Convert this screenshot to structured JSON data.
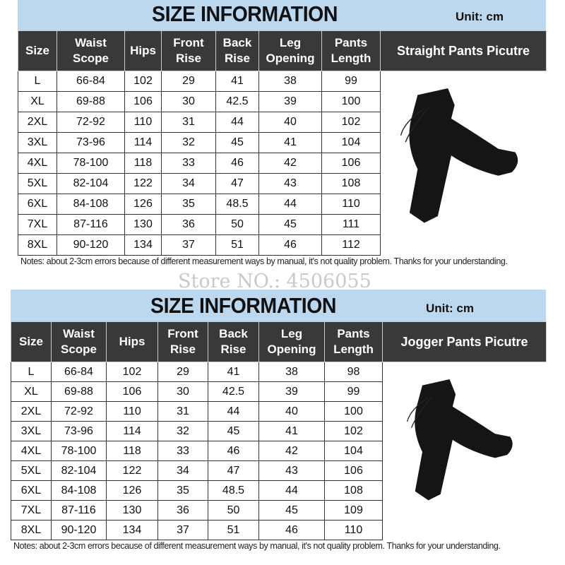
{
  "watermark": "Store NO.: 4506055",
  "tables": [
    {
      "title": "SIZE INFORMATION",
      "unit": "Unit: cm",
      "headers": [
        "Size",
        "Waist Scope",
        "Hips",
        "Front Rise",
        "Back Rise",
        "Leg Opening",
        "Pants Length",
        "Straight Pants Picutre"
      ],
      "rows": [
        [
          "L",
          "66-84",
          "102",
          "29",
          "41",
          "38",
          "99"
        ],
        [
          "XL",
          "69-88",
          "106",
          "30",
          "42.5",
          "39",
          "100"
        ],
        [
          "2XL",
          "72-92",
          "110",
          "31",
          "44",
          "40",
          "102"
        ],
        [
          "3XL",
          "73-96",
          "114",
          "32",
          "45",
          "41",
          "104"
        ],
        [
          "4XL",
          "78-100",
          "118",
          "33",
          "46",
          "42",
          "106"
        ],
        [
          "5XL",
          "82-104",
          "122",
          "34",
          "47",
          "43",
          "108"
        ],
        [
          "6XL",
          "84-108",
          "126",
          "35",
          "48.5",
          "44",
          "110"
        ],
        [
          "7XL",
          "87-116",
          "130",
          "36",
          "50",
          "45",
          "111"
        ],
        [
          "8XL",
          "90-120",
          "134",
          "37",
          "51",
          "46",
          "112"
        ]
      ],
      "notes": "Notes: about 2-3cm errors because of different measurement ways by manual, it's not quality problem.  Thanks for your understanding.",
      "picture": "straight-pants-image"
    },
    {
      "title": "SIZE INFORMATION",
      "unit": "Unit: cm",
      "headers": [
        "Size",
        "Waist Scope",
        "Hips",
        "Front Rise",
        "Back Rise",
        "Leg Opening",
        "Pants Length",
        "Jogger Pants Picutre"
      ],
      "rows": [
        [
          "L",
          "66-84",
          "102",
          "29",
          "41",
          "38",
          "98"
        ],
        [
          "XL",
          "69-88",
          "106",
          "30",
          "42.5",
          "39",
          "99"
        ],
        [
          "2XL",
          "72-92",
          "110",
          "31",
          "44",
          "40",
          "100"
        ],
        [
          "3XL",
          "73-96",
          "114",
          "32",
          "45",
          "41",
          "102"
        ],
        [
          "4XL",
          "78-100",
          "118",
          "33",
          "46",
          "42",
          "104"
        ],
        [
          "5XL",
          "82-104",
          "122",
          "34",
          "47",
          "43",
          "106"
        ],
        [
          "6XL",
          "84-108",
          "126",
          "35",
          "48.5",
          "44",
          "108"
        ],
        [
          "7XL",
          "87-116",
          "130",
          "36",
          "50",
          "45",
          "109"
        ],
        [
          "8XL",
          "90-120",
          "134",
          "37",
          "51",
          "46",
          "110"
        ]
      ],
      "notes": "Notes: about 2-3cm errors because of different measurement ways by manual, it's not quality problem.  Thanks for your understanding.",
      "picture": "jogger-pants-image"
    }
  ]
}
